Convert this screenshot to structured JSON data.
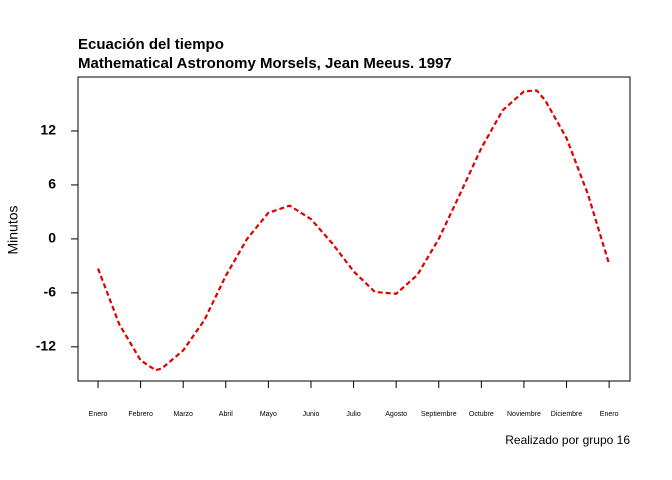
{
  "chart_data": {
    "type": "line",
    "title": "Ecuación del tiempo",
    "subtitle": "Mathematical Astronomy Morsels, Jean Meeus. 1997",
    "y_label": "Minutos",
    "annotation": "Realizado por grupo 16",
    "color": "#e00000",
    "line_style": "dashed",
    "x": [
      1,
      1.5,
      2,
      2.35,
      2.5,
      3,
      3.5,
      4,
      4.5,
      5,
      5.5,
      6,
      6.5,
      7,
      7.5,
      8,
      8.5,
      9,
      9.5,
      10,
      10.5,
      11,
      11.3,
      11.5,
      12,
      12.5,
      13
    ],
    "values": [
      -3.3,
      -9.5,
      -13.5,
      -14.6,
      -14.4,
      -12.4,
      -9,
      -4.1,
      0,
      2.9,
      3.7,
      2.2,
      -0.5,
      -3.6,
      -5.9,
      -6.1,
      -4,
      0,
      5,
      10.1,
      14.3,
      16.4,
      16.5,
      15.4,
      11.2,
      5,
      -2.8
    ],
    "xlim": [
      0.53,
      13.49
    ],
    "ylim": [
      -15.8,
      18
    ],
    "xticks": [
      {
        "value": 1,
        "label": "Enero"
      },
      {
        "value": 2,
        "label": "Febrero"
      },
      {
        "value": 3,
        "label": "Marzo"
      },
      {
        "value": 4,
        "label": "Abril"
      },
      {
        "value": 5,
        "label": "Mayo"
      },
      {
        "value": 6,
        "label": "Junio"
      },
      {
        "value": 7,
        "label": "Julio"
      },
      {
        "value": 8,
        "label": "Agosto"
      },
      {
        "value": 9,
        "label": "Septiembre"
      },
      {
        "value": 10,
        "label": "Octubre"
      },
      {
        "value": 11,
        "label": "Noviembre"
      },
      {
        "value": 12,
        "label": "Diciembre"
      },
      {
        "value": 13,
        "label": "Enero"
      }
    ],
    "yticks": [
      -12,
      -6,
      0,
      6,
      12
    ],
    "grid": false
  }
}
